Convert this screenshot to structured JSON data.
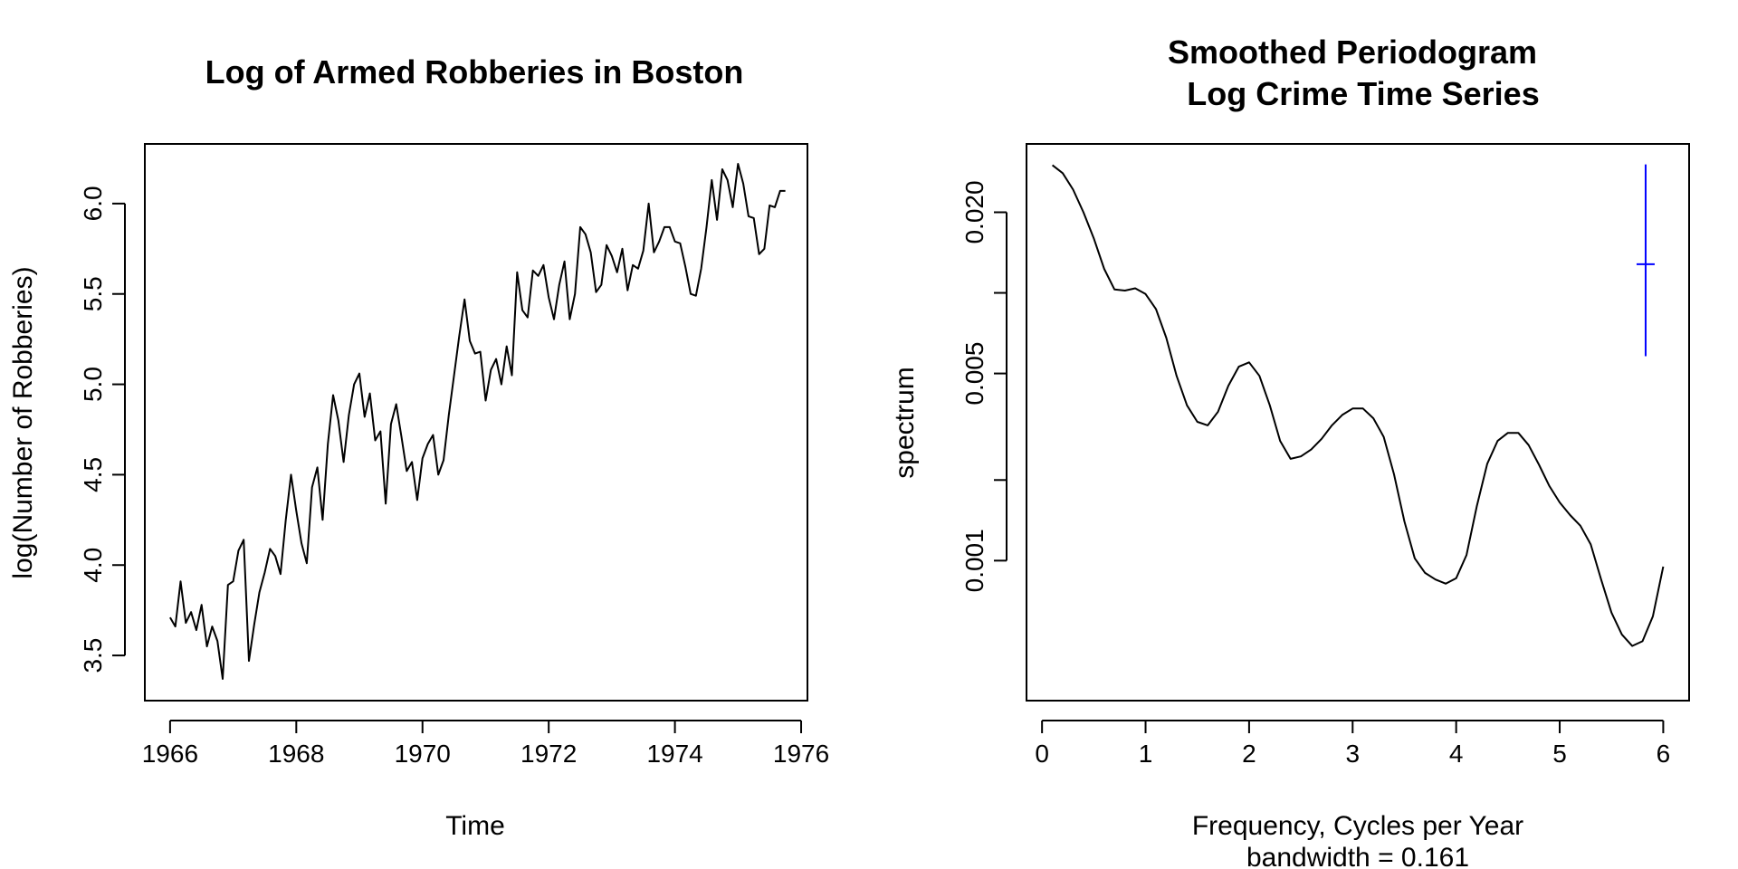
{
  "chart_data": [
    {
      "type": "line",
      "title": "Log of Armed Robberies in Boston",
      "xlabel": "Time",
      "ylabel": "log(Number of Robberies)",
      "xlim": [
        1965.6,
        1976.1
      ],
      "ylim": [
        3.25,
        6.33
      ],
      "x_ticks": [
        "1966",
        "1968",
        "1970",
        "1972",
        "1974",
        "1976"
      ],
      "y_ticks": [
        "3.5",
        "4.0",
        "4.5",
        "5.0",
        "5.5",
        "6.0"
      ],
      "start": 1966.0,
      "frequency": 12,
      "series": [
        {
          "values": [
            3.71,
            3.66,
            3.91,
            3.68,
            3.74,
            3.64,
            3.78,
            3.55,
            3.66,
            3.58,
            3.37,
            3.89,
            3.91,
            4.08,
            4.14,
            3.47,
            3.67,
            3.85,
            3.96,
            4.09,
            4.05,
            3.95,
            4.25,
            4.5,
            4.3,
            4.12,
            4.01,
            4.43,
            4.54,
            4.25,
            4.67,
            4.94,
            4.8,
            4.57,
            4.83,
            5.0,
            5.06,
            4.82,
            4.95,
            4.69,
            4.74,
            4.34,
            4.78,
            4.89,
            4.71,
            4.52,
            4.57,
            4.36,
            4.59,
            4.67,
            4.72,
            4.5,
            4.58,
            4.83,
            5.05,
            5.27,
            5.47,
            5.24,
            5.17,
            5.18,
            4.91,
            5.08,
            5.14,
            5.0,
            5.21,
            5.05,
            5.62,
            5.41,
            5.37,
            5.63,
            5.6,
            5.66,
            5.48,
            5.36,
            5.55,
            5.68,
            5.36,
            5.5,
            5.87,
            5.83,
            5.73,
            5.51,
            5.55,
            5.77,
            5.71,
            5.62,
            5.75,
            5.52,
            5.66,
            5.64,
            5.74,
            6.0,
            5.73,
            5.79,
            5.87,
            5.87,
            5.79,
            5.78,
            5.65,
            5.5,
            5.49,
            5.64,
            5.87,
            6.13,
            5.91,
            6.19,
            6.13,
            5.98,
            6.22,
            6.11,
            5.93,
            5.92,
            5.72,
            5.75,
            5.99,
            5.98,
            6.07,
            6.07
          ]
        }
      ]
    },
    {
      "type": "line",
      "title": "Smoothed Periodogram",
      "subtitle": "Log Crime Time Series",
      "xlabel": "Frequency, Cycles per Year",
      "xlabel2": "bandwidth = 0.161",
      "ylabel": "spectrum",
      "log_y": true,
      "xlim": [
        -0.15,
        6.25
      ],
      "ylim": [
        0.0003,
        0.036
      ],
      "x_ticks": [
        "0",
        "1",
        "2",
        "3",
        "4",
        "5",
        "6"
      ],
      "y_ticks": [
        "0.001",
        "0.005",
        "0.020"
      ],
      "y_minor_ticks": [
        0.002,
        0.01
      ],
      "series": [
        {
          "x": [
            0.1,
            0.2,
            0.3,
            0.4,
            0.5,
            0.6,
            0.7,
            0.8,
            0.9,
            1.0,
            1.1,
            1.2,
            1.3,
            1.4,
            1.5,
            1.6,
            1.7,
            1.8,
            1.9,
            2.0,
            2.1,
            2.2,
            2.3,
            2.4,
            2.5,
            2.6,
            2.7,
            2.8,
            2.9,
            3.0,
            3.1,
            3.2,
            3.3,
            3.4,
            3.5,
            3.6,
            3.7,
            3.8,
            3.9,
            4.0,
            4.1,
            4.2,
            4.3,
            4.4,
            4.5,
            4.6,
            4.7,
            4.8,
            4.9,
            5.0,
            5.1,
            5.2,
            5.3,
            5.4,
            5.5,
            5.6,
            5.7,
            5.8,
            5.9,
            6.0
          ],
          "y": [
            0.03,
            0.028,
            0.0243,
            0.02,
            0.016,
            0.0123,
            0.0103,
            0.0102,
            0.0104,
            0.0099,
            0.0087,
            0.0068,
            0.0049,
            0.0038,
            0.0033,
            0.0032,
            0.0036,
            0.0045,
            0.0053,
            0.0055,
            0.0049,
            0.0038,
            0.0028,
            0.0024,
            0.00245,
            0.0026,
            0.00285,
            0.0032,
            0.0035,
            0.0037,
            0.0037,
            0.0034,
            0.0029,
            0.0021,
            0.0014,
            0.00102,
            0.0009,
            0.00085,
            0.00082,
            0.00086,
            0.00105,
            0.0016,
            0.0023,
            0.0028,
            0.003,
            0.003,
            0.0027,
            0.00228,
            0.0019,
            0.00165,
            0.00148,
            0.00135,
            0.00115,
            0.00085,
            0.00064,
            0.00053,
            0.00048,
            0.0005,
            0.00062,
            0.00095
          ]
        }
      ],
      "ci_bar": {
        "x": 5.83,
        "center": 0.0128,
        "lower": 0.0058,
        "upper": 0.0302,
        "color": "#0000ff"
      }
    }
  ]
}
